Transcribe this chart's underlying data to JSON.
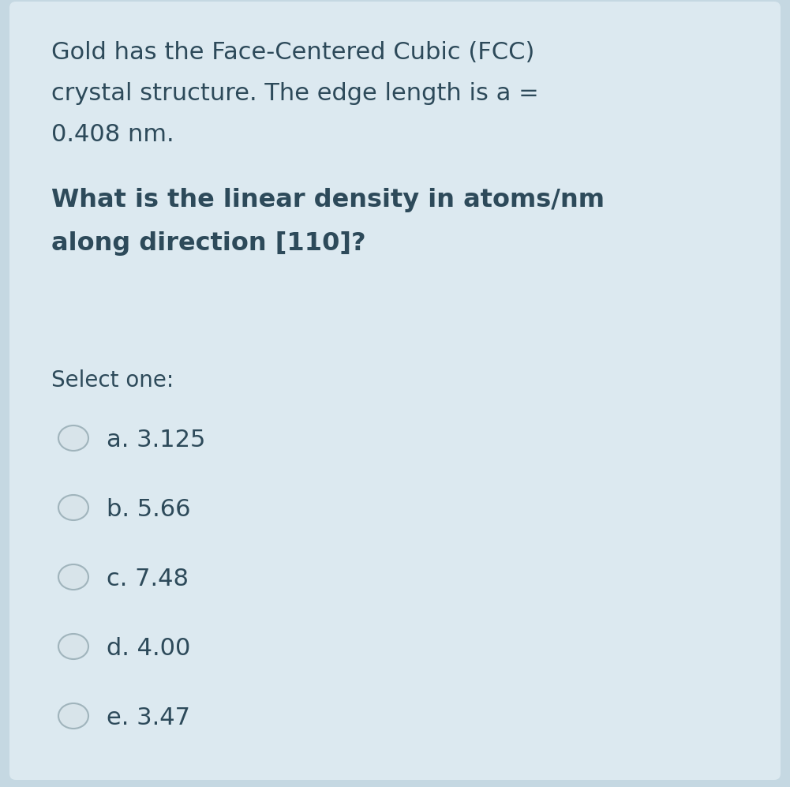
{
  "background_color": "#dce9f0",
  "outer_bg_color": "#c5d8e2",
  "text_color": "#2d4a5a",
  "intro_text_line1": "Gold has the Face-Centered Cubic (FCC)",
  "intro_text_line2": "crystal structure. The edge length is a =",
  "intro_text_line3": "0.408 nm.",
  "question_line1": "What is the linear density in atoms/nm",
  "question_line2": "along direction [110]?",
  "select_text": "Select one:",
  "options": [
    "a. 3.125",
    "b. 5.66",
    "c. 7.48",
    "d. 4.00",
    "e. 3.47"
  ],
  "radio_fill_color": "#d8e4ea",
  "radio_edge_color": "#a0b4bc",
  "intro_fontsize": 22,
  "question_fontsize": 23,
  "select_fontsize": 20,
  "option_fontsize": 22
}
